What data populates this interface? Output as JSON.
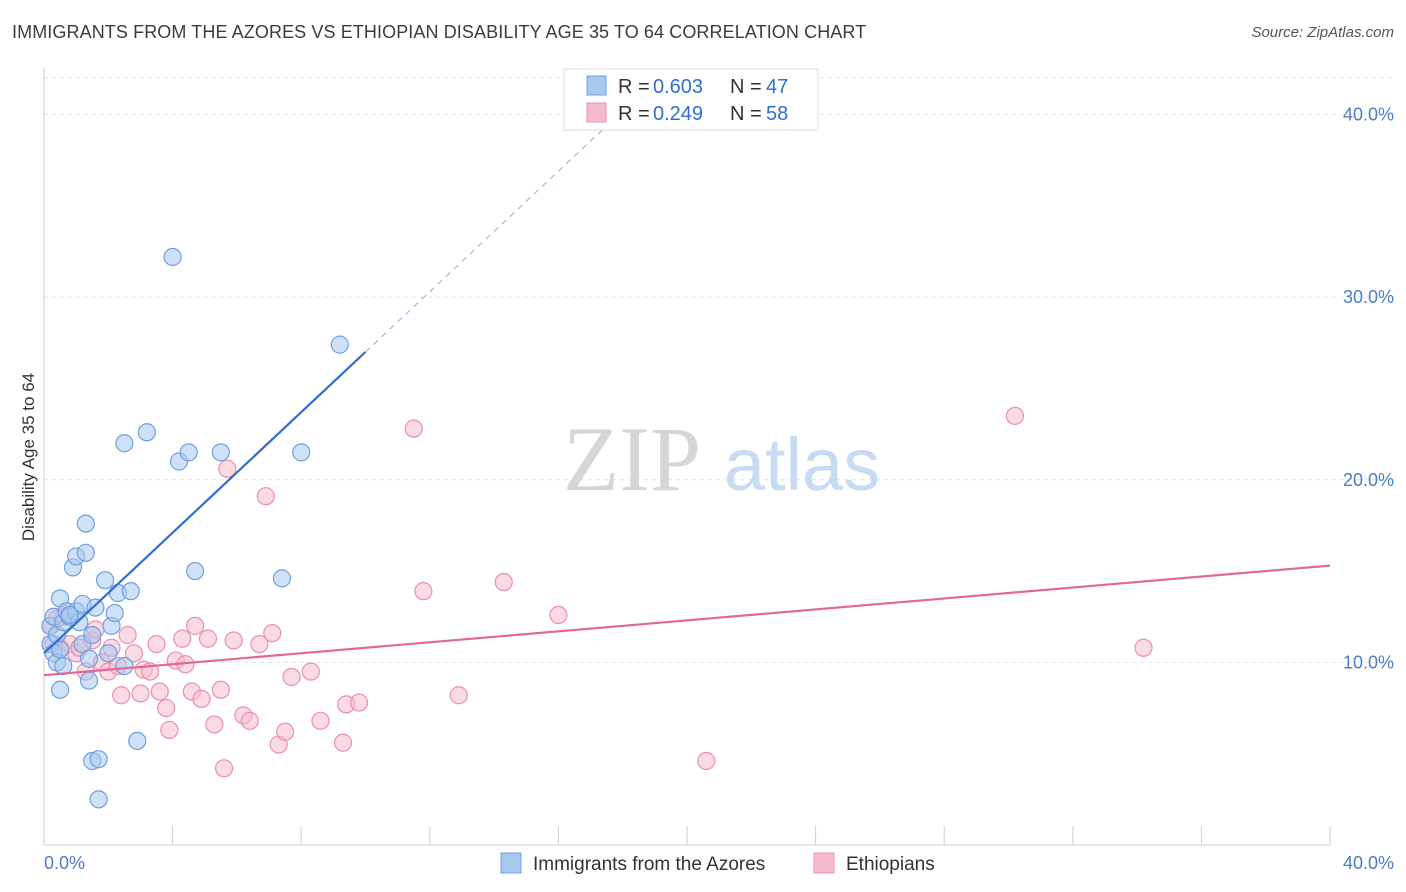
{
  "title": "IMMIGRANTS FROM THE AZORES VS ETHIOPIAN DISABILITY AGE 35 TO 64 CORRELATION CHART",
  "source": "Source: ZipAtlas.com",
  "watermark": {
    "zip": "ZIP",
    "atlas": "atlas"
  },
  "colors": {
    "blue_fill": "#a8c8f0",
    "blue_stroke": "#6f9fe0",
    "blue_line": "#2e6fd0",
    "pink_fill": "#f6bccd",
    "pink_stroke": "#ec8fab",
    "pink_line": "#e06a95",
    "axis_text": "#4a7cc7",
    "grid": "#e3e3e3"
  },
  "legend": {
    "rows": [
      {
        "r_label": "R =",
        "r_value": "0.603",
        "n_label": "N =",
        "n_value": "47"
      },
      {
        "r_label": "R =",
        "r_value": "0.249",
        "n_label": "N =",
        "n_value": "58"
      }
    ]
  },
  "bottom_legend": [
    "Immigrants from the Azores",
    "Ethiopians"
  ],
  "chart_data": {
    "type": "scatter",
    "title": "IMMIGRANTS FROM THE AZORES VS ETHIOPIAN DISABILITY AGE 35 TO 64 CORRELATION CHART",
    "xlabel": "",
    "ylabel": "Disability Age 35 to 64",
    "xlim": [
      0,
      40
    ],
    "ylim": [
      0,
      42
    ],
    "x_tick_labels": [
      "0.0%",
      "40.0%"
    ],
    "y_ticks": [
      10,
      20,
      30,
      40
    ],
    "y_tick_labels": [
      "10.0%",
      "20.0%",
      "30.0%",
      "40.0%"
    ],
    "series": [
      {
        "name": "Immigrants from the Azores",
        "r": 0.603,
        "n": 47,
        "trend": {
          "x0": 0.0,
          "y0": 10.5,
          "x1": 10.0,
          "y1": 27.0,
          "dash_to_x": 18.0,
          "dash_to_y": 40.2
        },
        "points": [
          [
            0.2,
            11.0
          ],
          [
            0.2,
            12.0
          ],
          [
            0.3,
            12.5
          ],
          [
            0.3,
            10.5
          ],
          [
            0.4,
            10.0
          ],
          [
            0.4,
            11.5
          ],
          [
            0.5,
            13.5
          ],
          [
            0.5,
            8.5
          ],
          [
            0.6,
            12.2
          ],
          [
            0.6,
            9.8
          ],
          [
            0.7,
            12.8
          ],
          [
            0.8,
            12.5
          ],
          [
            0.9,
            15.2
          ],
          [
            1.0,
            12.8
          ],
          [
            1.0,
            15.8
          ],
          [
            1.1,
            12.2
          ],
          [
            1.2,
            11.0
          ],
          [
            1.2,
            13.2
          ],
          [
            1.3,
            16.0
          ],
          [
            1.3,
            17.6
          ],
          [
            1.4,
            10.2
          ],
          [
            1.4,
            9.0
          ],
          [
            1.5,
            11.5
          ],
          [
            1.5,
            4.6
          ],
          [
            1.6,
            13.0
          ],
          [
            1.7,
            4.7
          ],
          [
            1.7,
            2.5
          ],
          [
            1.9,
            14.5
          ],
          [
            2.1,
            12.0
          ],
          [
            2.2,
            12.7
          ],
          [
            2.3,
            13.8
          ],
          [
            2.5,
            9.8
          ],
          [
            2.5,
            22.0
          ],
          [
            2.7,
            13.9
          ],
          [
            2.9,
            5.7
          ],
          [
            3.2,
            22.6
          ],
          [
            4.0,
            32.2
          ],
          [
            4.2,
            21.0
          ],
          [
            4.5,
            21.5
          ],
          [
            4.7,
            15.0
          ],
          [
            5.5,
            21.5
          ],
          [
            7.4,
            14.6
          ],
          [
            8.0,
            21.5
          ],
          [
            9.2,
            27.4
          ],
          [
            0.5,
            10.7
          ],
          [
            0.8,
            12.6
          ],
          [
            2.0,
            10.5
          ]
        ]
      },
      {
        "name": "Ethiopians",
        "r": 0.249,
        "n": 58,
        "trend": {
          "x0": 0.0,
          "y0": 9.3,
          "x1": 40.0,
          "y1": 15.3
        },
        "points": [
          [
            0.2,
            12.0
          ],
          [
            0.3,
            11.0
          ],
          [
            0.5,
            10.8
          ],
          [
            0.6,
            12.5
          ],
          [
            0.8,
            11.0
          ],
          [
            1.0,
            10.5
          ],
          [
            1.1,
            10.8
          ],
          [
            1.3,
            9.5
          ],
          [
            1.5,
            11.2
          ],
          [
            1.6,
            11.8
          ],
          [
            1.8,
            10.0
          ],
          [
            2.0,
            9.5
          ],
          [
            2.1,
            10.8
          ],
          [
            2.3,
            9.8
          ],
          [
            2.4,
            8.2
          ],
          [
            2.6,
            11.5
          ],
          [
            2.8,
            10.5
          ],
          [
            3.0,
            8.3
          ],
          [
            3.1,
            9.6
          ],
          [
            3.3,
            9.5
          ],
          [
            3.5,
            11.0
          ],
          [
            3.6,
            8.4
          ],
          [
            3.8,
            7.5
          ],
          [
            3.9,
            6.3
          ],
          [
            4.1,
            10.1
          ],
          [
            4.3,
            11.3
          ],
          [
            4.4,
            9.9
          ],
          [
            4.6,
            8.4
          ],
          [
            4.7,
            12.0
          ],
          [
            4.9,
            8.0
          ],
          [
            5.1,
            11.3
          ],
          [
            5.3,
            6.6
          ],
          [
            5.5,
            8.5
          ],
          [
            5.6,
            4.2
          ],
          [
            5.7,
            20.6
          ],
          [
            5.9,
            11.2
          ],
          [
            6.2,
            7.1
          ],
          [
            6.4,
            6.8
          ],
          [
            6.7,
            11.0
          ],
          [
            6.9,
            19.1
          ],
          [
            7.1,
            11.6
          ],
          [
            7.3,
            5.5
          ],
          [
            7.5,
            6.2
          ],
          [
            7.7,
            9.2
          ],
          [
            8.3,
            9.5
          ],
          [
            8.6,
            6.8
          ],
          [
            9.3,
            5.6
          ],
          [
            9.4,
            7.7
          ],
          [
            9.8,
            7.8
          ],
          [
            11.5,
            22.8
          ],
          [
            11.8,
            13.9
          ],
          [
            12.9,
            8.2
          ],
          [
            14.3,
            14.4
          ],
          [
            16.0,
            12.6
          ],
          [
            20.6,
            4.6
          ],
          [
            30.2,
            23.5
          ],
          [
            34.2,
            10.8
          ],
          [
            0.4,
            12.4
          ]
        ]
      }
    ]
  }
}
